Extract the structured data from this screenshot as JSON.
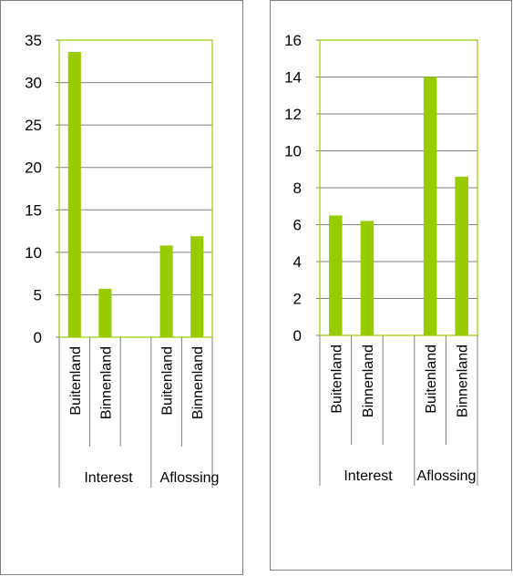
{
  "chart_data": [
    {
      "type": "bar",
      "groups": [
        {
          "label": "Interest",
          "categories": [
            "Buitenland",
            "Binnenland"
          ],
          "values": [
            33.6,
            5.7
          ]
        },
        {
          "label": "Aflossing",
          "categories": [
            "Buitenland",
            "Binnenland"
          ],
          "values": [
            10.8,
            11.9
          ]
        }
      ],
      "ylim": [
        0,
        35
      ],
      "yticks": [
        "0",
        "5",
        "10",
        "15",
        "20",
        "25",
        "30",
        "35"
      ],
      "grid": true,
      "legend": "none",
      "bar_color": "#99cc00",
      "plot_border_color": "#99cc00"
    },
    {
      "type": "bar",
      "groups": [
        {
          "label": "Interest",
          "categories": [
            "Buitenland",
            "Binnenland"
          ],
          "values": [
            6.5,
            6.2
          ]
        },
        {
          "label": "Aflossing",
          "categories": [
            "Buitenland",
            "Binnenland"
          ],
          "values": [
            14.0,
            8.6
          ]
        }
      ],
      "ylim": [
        0,
        16
      ],
      "yticks": [
        "0",
        "2",
        "4",
        "6",
        "8",
        "10",
        "12",
        "14",
        "16"
      ],
      "grid": true,
      "legend": "none",
      "bar_color": "#99cc00",
      "plot_border_color": "#99cc00"
    }
  ]
}
